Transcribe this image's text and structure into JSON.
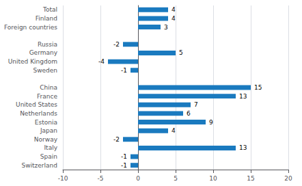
{
  "chart_data": {
    "type": "bar",
    "orientation": "horizontal",
    "categories": [
      "Total",
      "Finland",
      "Foreign countries",
      null,
      "Russia",
      "Germany",
      "United Kingdom",
      "Sweden",
      null,
      "China",
      "France",
      "United States",
      "Netherlands",
      "Estonia",
      "Japan",
      "Norway",
      "Italy",
      "Spain",
      "Switzerland"
    ],
    "values": [
      4,
      4,
      3,
      null,
      -2,
      5,
      -4,
      -1,
      null,
      15,
      13,
      7,
      6,
      9,
      4,
      -2,
      13,
      -1,
      -1
    ],
    "color": "#1a7abf",
    "xlim": [
      -10,
      20
    ],
    "xticks": [
      -10,
      -5,
      0,
      5,
      10,
      15,
      20
    ],
    "grid": true,
    "data_labels": true
  }
}
